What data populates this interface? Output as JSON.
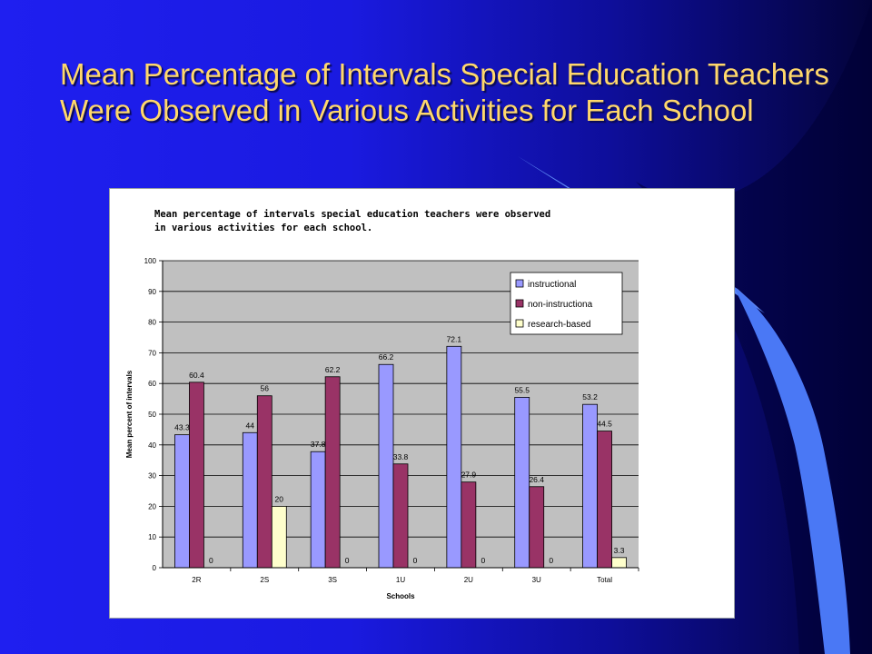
{
  "slide": {
    "title": "Mean Percentage of Intervals Special Education Teachers Were Observed in Various Activities for Each School"
  },
  "colors": {
    "instructional": "#9999ff",
    "non_instructional": "#993366",
    "research_based": "#ffffcc",
    "plot_background": "#c0c0c0",
    "title": "#ffd86b"
  },
  "chart_data": {
    "type": "bar",
    "title_lines": [
      "Mean percentage of intervals special education teachers were observed",
      "in various activities for each school."
    ],
    "xlabel": "Schools",
    "ylabel": "Mean percent of intervals",
    "ylim": [
      0,
      100
    ],
    "yticks": [
      0,
      10,
      20,
      30,
      40,
      50,
      60,
      70,
      80,
      90,
      100
    ],
    "grid": true,
    "legend_position": "top-right",
    "categories": [
      "2R",
      "2S",
      "3S",
      "1U",
      "2U",
      "3U",
      "Total"
    ],
    "series": [
      {
        "name": "instructional",
        "values": [
          43.3,
          44,
          37.8,
          66.2,
          72.1,
          55.5,
          53.2
        ]
      },
      {
        "name": "non-instructiona",
        "values": [
          60.4,
          56,
          62.2,
          33.8,
          27.9,
          26.4,
          44.5
        ]
      },
      {
        "name": "research-based",
        "values": [
          0,
          20,
          0,
          0,
          0,
          0,
          3.3
        ]
      }
    ]
  }
}
